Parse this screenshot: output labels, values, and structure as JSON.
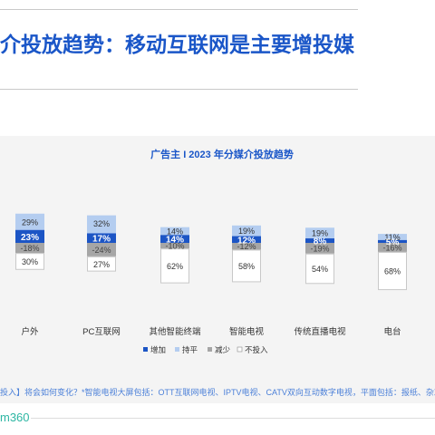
{
  "headline": "介投放趋势：移动互联网是主要增投媒",
  "footnote": "投入】将会如何变化？*智能电视大屏包括：OTT互联网电视、IPTV电视、CATV双向互动数字电视，平面包括：报纸、杂志等",
  "logo": "m360",
  "colors": {
    "increase": "#1c55c5",
    "flat": "#b4cdf0",
    "decrease": "#a6a6a6",
    "none": "#ffffff",
    "title": "#1a56c8"
  },
  "chart_data": {
    "type": "bar",
    "stacked": "diverging",
    "title": "广告主 I 2023 年分媒介投放趋势",
    "categories": [
      "户外",
      "PC互联网",
      "其他智能终端",
      "智能电视",
      "传统直播电视",
      "电台"
    ],
    "series": [
      {
        "name": "增加",
        "values": [
          23,
          17,
          14,
          12,
          8,
          5
        ]
      },
      {
        "name": "持平",
        "values": [
          29,
          32,
          14,
          19,
          19,
          11
        ]
      },
      {
        "name": "减少",
        "values": [
          -18,
          -24,
          -10,
          -12,
          -19,
          -16
        ]
      },
      {
        "name": "不投入",
        "values": [
          30,
          27,
          62,
          58,
          54,
          68
        ]
      }
    ],
    "labels": {
      "increase": [
        "23%",
        "17%",
        "14%",
        "12%",
        "8%",
        "5%"
      ],
      "flat": [
        "29%",
        "32%",
        "14%",
        "19%",
        "19%",
        "11%"
      ],
      "decrease": [
        "-18%",
        "-24%",
        "-10%",
        "-12%",
        "-19%",
        "-16%"
      ],
      "none": [
        "30%",
        "27%",
        "62%",
        "58%",
        "54%",
        "68%"
      ]
    },
    "legend": [
      "增加",
      "持平",
      "减少",
      "不投入"
    ],
    "legend_position": "bottom",
    "grid": false
  }
}
